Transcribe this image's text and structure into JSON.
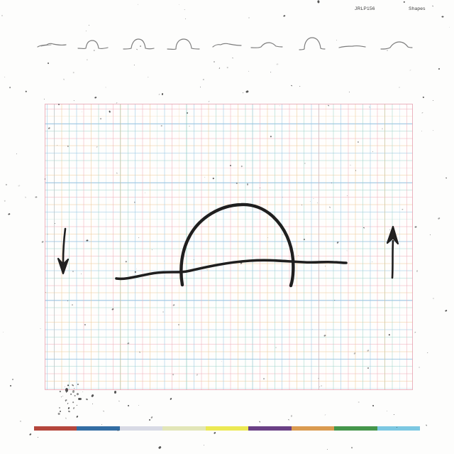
{
  "header": {
    "catalog_text": "JRLP156",
    "title_text": "Shapes"
  },
  "sketch_row": {
    "items": [
      {
        "name": "sketch-1"
      },
      {
        "name": "sketch-2"
      },
      {
        "name": "sketch-3"
      },
      {
        "name": "sketch-4"
      },
      {
        "name": "sketch-5"
      },
      {
        "name": "sketch-6"
      },
      {
        "name": "sketch-7"
      },
      {
        "name": "sketch-8"
      },
      {
        "name": "sketch-9"
      }
    ]
  },
  "drawing": {
    "ink_color": "#1f1f1f",
    "pencil_color": "#5f5f5f",
    "left_arrow_direction": "down",
    "right_arrow_direction": "up"
  },
  "grid": {
    "line_colors": [
      "#eea8b6",
      "#96c6e4",
      "#ecc68e",
      "#96d2c6"
    ],
    "border_color": "#e8a6b4",
    "paper_color": "#fffefd"
  },
  "color_bar": {
    "segments": [
      "#b5463c",
      "#336da3",
      "#d8dae5",
      "#e2e6b8",
      "#ece953",
      "#6a4085",
      "#da9b51",
      "#45964b",
      "#7cc8e2"
    ]
  }
}
